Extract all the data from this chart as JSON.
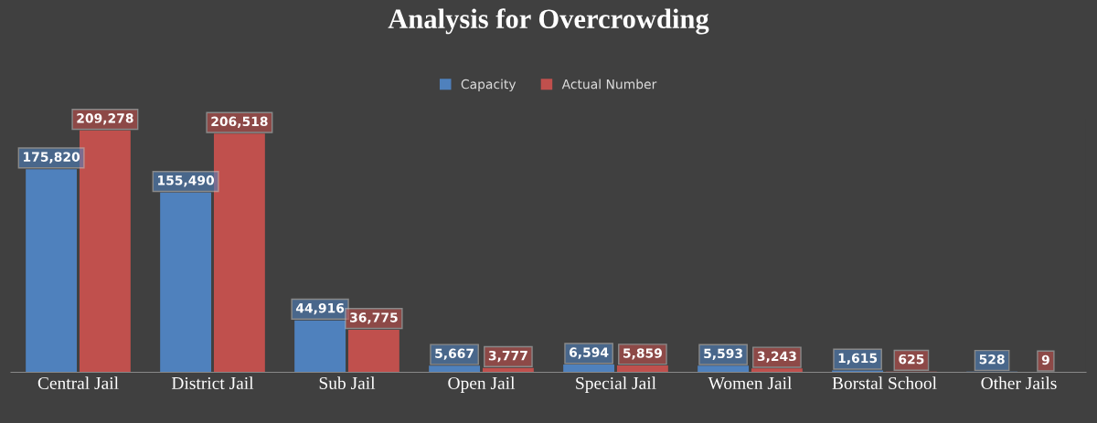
{
  "chart_data": {
    "type": "bar",
    "title": "Analysis for Overcrowding",
    "categories": [
      "Central Jail",
      "District Jail",
      "Sub Jail",
      "Open Jail",
      "Special Jail",
      "Women Jail",
      "Borstal School",
      "Other Jails"
    ],
    "series": [
      {
        "name": "Capacity",
        "color": "#4f81bd",
        "values": [
          175820,
          155490,
          44916,
          5667,
          6594,
          5593,
          1615,
          528
        ],
        "value_labels": [
          "175,820",
          "155,490",
          "44,916",
          "5,667",
          "6,594",
          "5,593",
          "1,615",
          "528"
        ]
      },
      {
        "name": "Actual Number",
        "color": "#c0504d",
        "values": [
          209278,
          206518,
          36775,
          3777,
          5859,
          3243,
          625,
          9
        ],
        "value_labels": [
          "209,278",
          "206,518",
          "36,775",
          "3,777",
          "5,859",
          "3,243",
          "625",
          "9"
        ]
      }
    ],
    "legend": "top",
    "grid": false
  }
}
